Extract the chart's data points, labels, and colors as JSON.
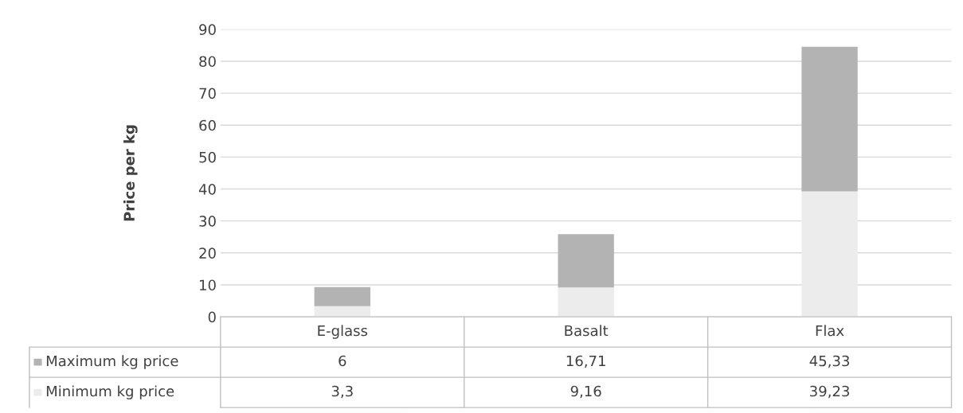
{
  "chart_data": {
    "type": "bar",
    "stacked": true,
    "ylabel": "Price per kg",
    "categories": [
      "E-glass",
      "Basalt",
      "Flax"
    ],
    "series": [
      {
        "name": "Minimum kg price",
        "color": "#ececec",
        "values": [
          3.3,
          9.16,
          39.23
        ],
        "value_labels": [
          "3,3",
          "9,16",
          "39,23"
        ]
      },
      {
        "name": "Maximum kg price",
        "color": "#b3b3b3",
        "values": [
          6,
          16.71,
          45.33
        ],
        "value_labels": [
          "6",
          "16,71",
          "45,33"
        ]
      }
    ],
    "ylim": [
      0,
      90
    ],
    "yticks": [
      0,
      10,
      20,
      30,
      40,
      50,
      60,
      70,
      80,
      90
    ],
    "grid": "y",
    "legend": "bottom left"
  }
}
